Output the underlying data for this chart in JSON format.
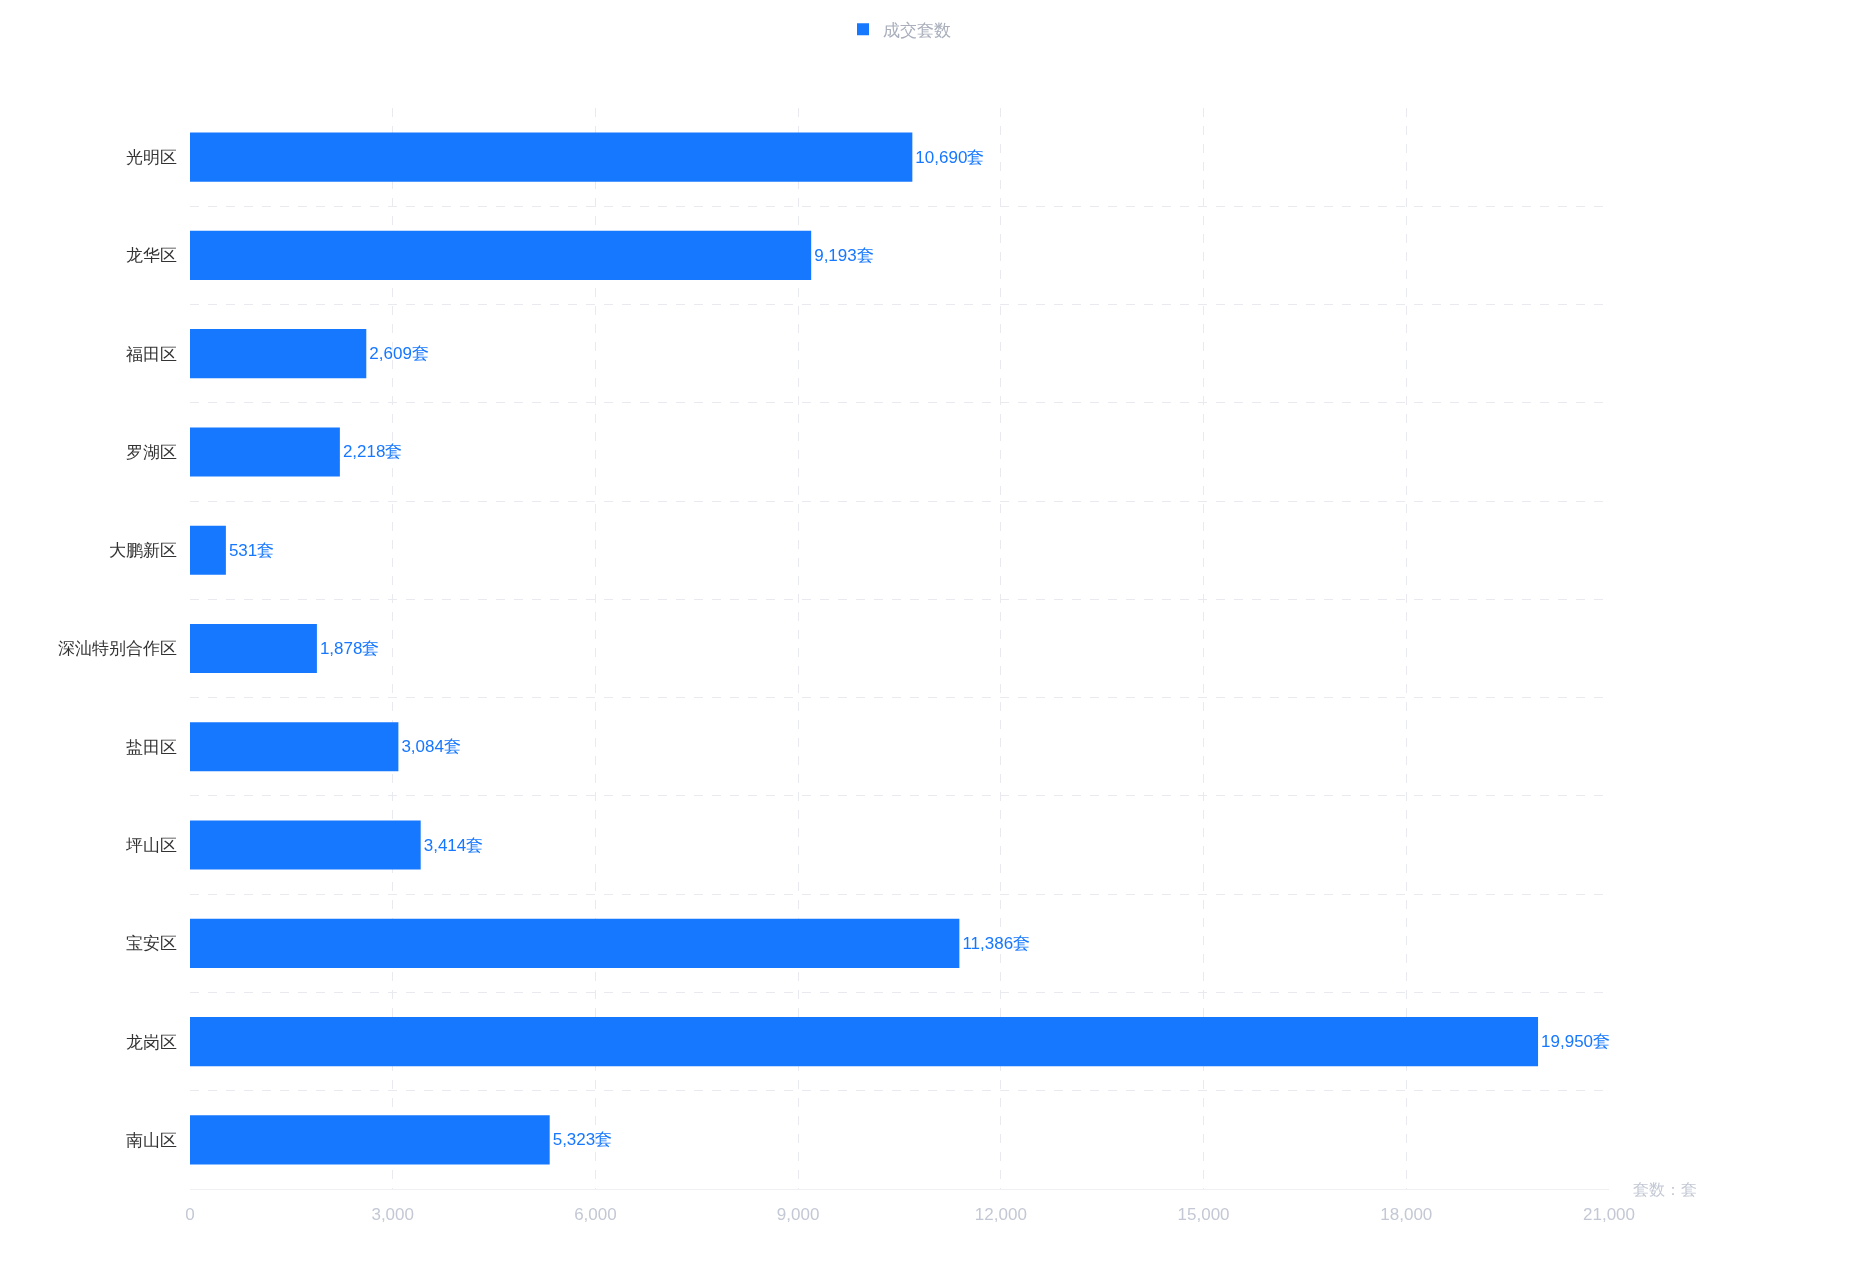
{
  "chart_data": {
    "type": "bar",
    "orientation": "horizontal",
    "categories": [
      "光明区",
      "龙华区",
      "福田区",
      "罗湖区",
      "大鹏新区",
      "深汕特别合作区",
      "盐田区",
      "坪山区",
      "宝安区",
      "龙岗区",
      "南山区"
    ],
    "series": [
      {
        "name": "成交套数",
        "color": "#1677ff",
        "values": [
          10690,
          9193,
          2609,
          2218,
          531,
          1878,
          3084,
          3414,
          11386,
          19950,
          5323
        ],
        "value_labels": [
          "10,690套",
          "9,193套",
          "2,609套",
          "2,218套",
          "531套",
          "1,878套",
          "3,084套",
          "3,414套",
          "11,386套",
          "19,950套",
          "5,323套"
        ]
      }
    ],
    "xlim": [
      0,
      21000
    ],
    "xticks": [
      0,
      {
        "value": 3000,
        "label": "3,000"
      },
      {
        "value": 6000,
        "label": "6,000"
      },
      {
        "value": 9000,
        "label": "9,000"
      },
      {
        "value": 12000,
        "label": "12,000"
      },
      {
        "value": 15000,
        "label": "15,000"
      },
      {
        "value": 18000,
        "label": "18,000"
      },
      {
        "value": 21000,
        "label": "21,000"
      }
    ],
    "xlabel": "套数：套",
    "grid": true,
    "legend": "top"
  }
}
